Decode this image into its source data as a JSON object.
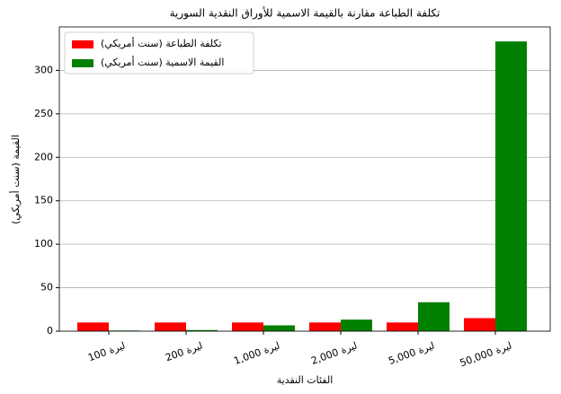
{
  "chart_data": {
    "type": "bar",
    "title": "تكلفة الطباعة مقارنة بالقيمة الاسمية للأوراق النقدية السورية",
    "x_label": "الفئات النقدية",
    "y_label": "القيمة (سنت أمريكي)",
    "categories": [
      "100 ليرة",
      "200 ليرة",
      "1,000 ليرة",
      "2,000 ليرة",
      "5,000 ليرة",
      "50,000 ليرة"
    ],
    "series": [
      {
        "name": "تكلفة الطباعة (سنت أمريكي)",
        "color": "#ff0000",
        "values": [
          10,
          10,
          10,
          10,
          10,
          15
        ]
      },
      {
        "name": "القيمة الاسمية (سنت أمريكي)",
        "color": "#008000",
        "values": [
          0.7,
          1.3,
          6.7,
          13.3,
          33.3,
          333.3
        ]
      }
    ],
    "ylim": [
      0,
      350
    ],
    "yticks": [
      0,
      50,
      100,
      150,
      200,
      250,
      300
    ],
    "grid": true,
    "legend": "upper left"
  }
}
